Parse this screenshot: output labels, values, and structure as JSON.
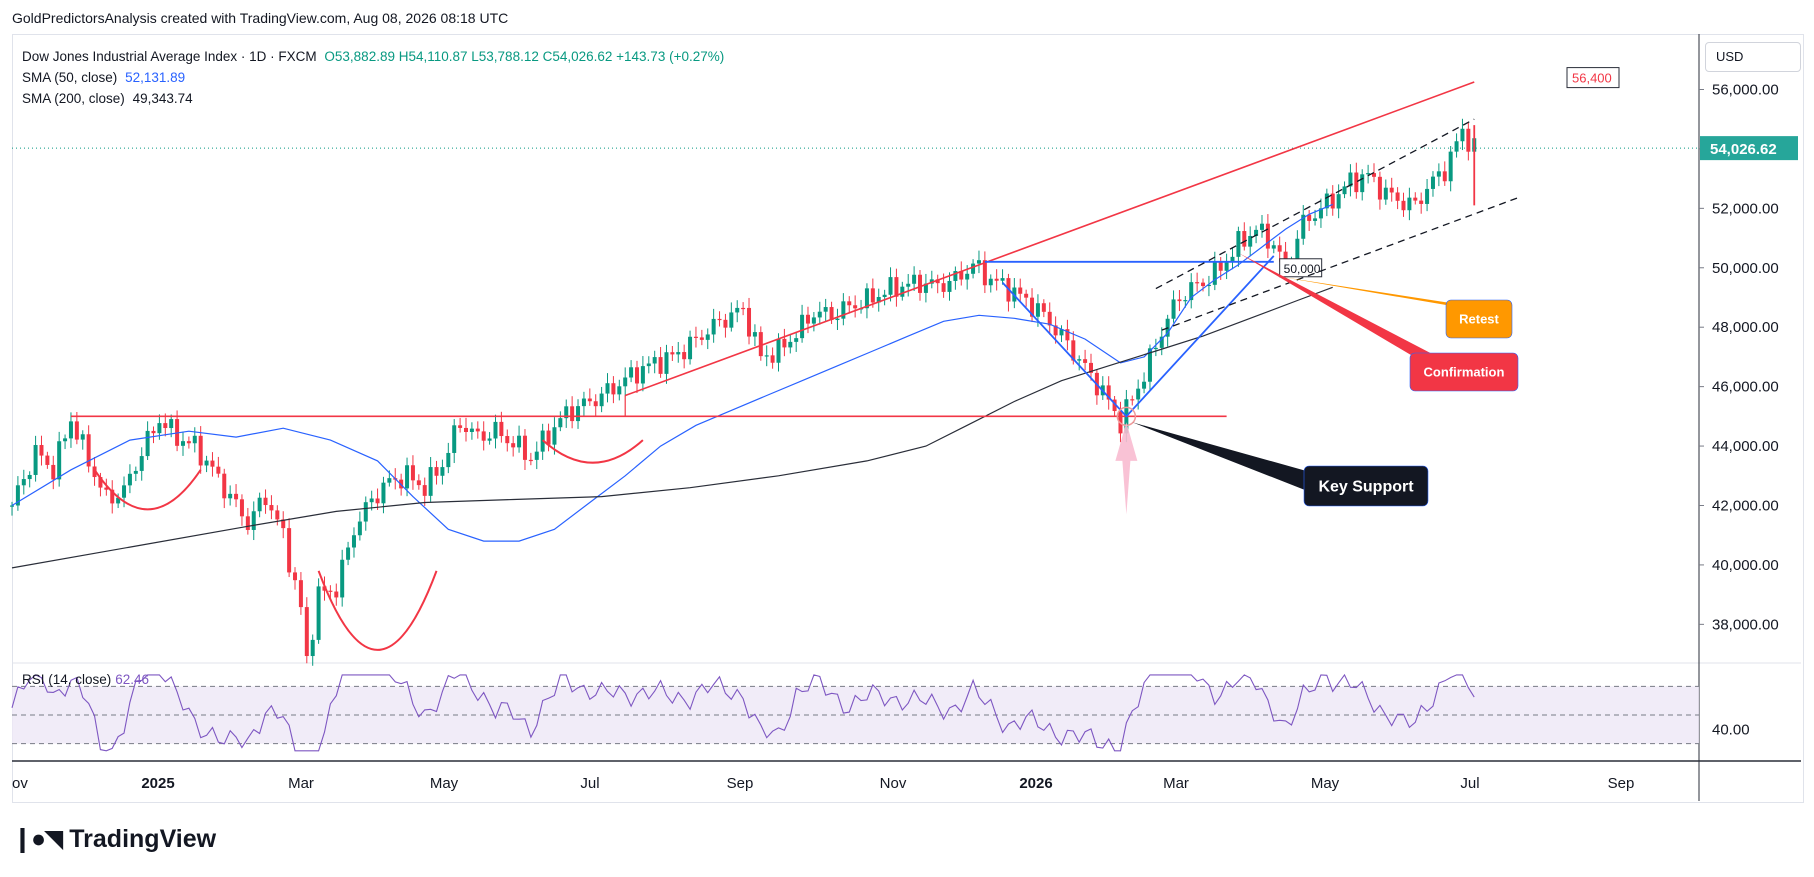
{
  "header": {
    "attribution": "GoldPredictorsAnalysis created with TradingView.com, Aug 08, 2026 08:18 UTC"
  },
  "legend": {
    "symbol": "Dow Jones Industrial Average Index · 1D · FXCM",
    "ohlc": "O53,882.89  H54,110.87  L53,788.12  C54,026.62  +143.73 (+0.27%)",
    "sma50_label": "SMA (50, close)",
    "sma50_value": "52,131.89",
    "sma200_label": "SMA (200, close)",
    "sma200_value": "49,343.74"
  },
  "rsi_legend": {
    "label": "RSI (14, close)",
    "value": "62.46"
  },
  "currency": "USD",
  "brand": {
    "name": "TradingView"
  },
  "colors": {
    "price_up": "#089981",
    "price_down": "#f23645",
    "sma50": "#2962ff",
    "sma200": "#2a2e39",
    "trend_red": "#f23645",
    "pattern_blue": "#2962ff",
    "rsi_line": "#7e57c2",
    "last_price_tag": "#26a69a",
    "retest_box": "#ff9800",
    "confirmation_box": "#f23645",
    "key_support_box": "#131722"
  },
  "chart_data": {
    "type": "line",
    "title": "Dow Jones Industrial Average Index",
    "subtitle": "1D · FXCM",
    "x_ticks": [
      "ov",
      "2025",
      "Mar",
      "May",
      "Jul",
      "Sep",
      "Nov",
      "2026",
      "Mar",
      "May",
      "Jul",
      "Sep"
    ],
    "y_ticks": [
      "56,000.00",
      "54,000.00",
      "52,000.00",
      "50,000.00",
      "48,000.00",
      "46,000.00",
      "44,000.00",
      "42,000.00",
      "40,000.00",
      "38,000.00"
    ],
    "ylim": [
      36800,
      57800
    ],
    "last_price": "54,026.62",
    "series": [
      {
        "name": "SMA (50, close)",
        "values": [
          [
            0,
            42000
          ],
          [
            10,
            43200
          ],
          [
            20,
            44200
          ],
          [
            30,
            44500
          ],
          [
            38,
            44300
          ],
          [
            46,
            44600
          ],
          [
            54,
            44200
          ],
          [
            62,
            43500
          ],
          [
            68,
            42300
          ],
          [
            74,
            41200
          ],
          [
            80,
            40800
          ],
          [
            86,
            40800
          ],
          [
            92,
            41200
          ],
          [
            98,
            42100
          ],
          [
            104,
            43000
          ],
          [
            110,
            44000
          ],
          [
            116,
            44700
          ],
          [
            122,
            45200
          ],
          [
            128,
            45700
          ],
          [
            134,
            46200
          ],
          [
            140,
            46700
          ],
          [
            146,
            47200
          ],
          [
            152,
            47700
          ],
          [
            158,
            48200
          ],
          [
            164,
            48400
          ],
          [
            170,
            48300
          ],
          [
            176,
            48100
          ],
          [
            182,
            47600
          ],
          [
            188,
            46800
          ],
          [
            192,
            47000
          ],
          [
            196,
            47800
          ],
          [
            200,
            49000
          ],
          [
            204,
            49600
          ],
          [
            208,
            50100
          ],
          [
            212,
            50700
          ],
          [
            216,
            51300
          ],
          [
            220,
            51800
          ],
          [
            224,
            52131.89
          ]
        ]
      },
      {
        "name": "SMA (200, close)",
        "values": [
          [
            0,
            39900
          ],
          [
            20,
            40600
          ],
          [
            40,
            41300
          ],
          [
            55,
            41800
          ],
          [
            70,
            42100
          ],
          [
            85,
            42200
          ],
          [
            100,
            42300
          ],
          [
            115,
            42600
          ],
          [
            130,
            43000
          ],
          [
            145,
            43500
          ],
          [
            155,
            44000
          ],
          [
            162,
            44700
          ],
          [
            170,
            45500
          ],
          [
            178,
            46200
          ],
          [
            186,
            46700
          ],
          [
            194,
            47200
          ],
          [
            202,
            47700
          ],
          [
            210,
            48300
          ],
          [
            218,
            48900
          ],
          [
            224,
            49343.74
          ]
        ]
      }
    ],
    "price_path": [
      [
        0,
        42000
      ],
      [
        4,
        43800
      ],
      [
        7,
        43200
      ],
      [
        10,
        44900
      ],
      [
        13,
        43500
      ],
      [
        16,
        42200
      ],
      [
        19,
        42500
      ],
      [
        22,
        43800
      ],
      [
        25,
        44900
      ],
      [
        28,
        44300
      ],
      [
        31,
        44000
      ],
      [
        34,
        43200
      ],
      [
        37,
        42300
      ],
      [
        40,
        41400
      ],
      [
        43,
        42300
      ],
      [
        46,
        41000
      ],
      [
        49,
        38500
      ],
      [
        50,
        36800
      ],
      [
        52,
        39000
      ],
      [
        55,
        39200
      ],
      [
        58,
        41200
      ],
      [
        61,
        42200
      ],
      [
        64,
        42800
      ],
      [
        67,
        43000
      ],
      [
        70,
        42600
      ],
      [
        73,
        43400
      ],
      [
        76,
        44800
      ],
      [
        79,
        44300
      ],
      [
        82,
        44500
      ],
      [
        85,
        44100
      ],
      [
        88,
        43600
      ],
      [
        91,
        44400
      ],
      [
        94,
        45100
      ],
      [
        97,
        45400
      ],
      [
        100,
        45700
      ],
      [
        103,
        46100
      ],
      [
        106,
        46500
      ],
      [
        109,
        46800
      ],
      [
        112,
        47000
      ],
      [
        115,
        47400
      ],
      [
        118,
        47900
      ],
      [
        121,
        48300
      ],
      [
        124,
        48600
      ],
      [
        127,
        47000
      ],
      [
        130,
        47200
      ],
      [
        133,
        47800
      ],
      [
        136,
        48500
      ],
      [
        139,
        48400
      ],
      [
        142,
        48700
      ],
      [
        145,
        48900
      ],
      [
        148,
        49200
      ],
      [
        151,
        49400
      ],
      [
        154,
        49500
      ],
      [
        157,
        49400
      ],
      [
        160,
        49600
      ],
      [
        163,
        50100
      ],
      [
        166,
        49600
      ],
      [
        169,
        49300
      ],
      [
        172,
        48900
      ],
      [
        175,
        48400
      ],
      [
        178,
        47700
      ],
      [
        181,
        46900
      ],
      [
        184,
        46100
      ],
      [
        186,
        45500
      ],
      [
        188,
        44800
      ],
      [
        190,
        45600
      ],
      [
        192,
        46400
      ],
      [
        194,
        47400
      ],
      [
        196,
        48300
      ],
      [
        198,
        49000
      ],
      [
        200,
        49300
      ],
      [
        202,
        49500
      ],
      [
        205,
        50000
      ],
      [
        208,
        50800
      ],
      [
        211,
        51300
      ],
      [
        214,
        50800
      ],
      [
        216,
        50000
      ],
      [
        219,
        51500
      ],
      [
        222,
        52000
      ],
      [
        224,
        52300
      ],
      [
        227,
        52900
      ],
      [
        230,
        53100
      ],
      [
        233,
        52500
      ],
      [
        236,
        52200
      ],
      [
        238,
        52100
      ],
      [
        240,
        52700
      ],
      [
        243,
        53300
      ],
      [
        246,
        54600
      ],
      [
        248,
        54026.62
      ]
    ],
    "rsi": {
      "label": "RSI (14, close)",
      "value": 62.46,
      "levels": [
        70,
        50,
        30
      ],
      "axis_tick": "40.00"
    },
    "annotations": [
      {
        "text": "56,400",
        "type": "label"
      },
      {
        "text": "50,000",
        "type": "label"
      },
      {
        "text": "Retest",
        "type": "callout"
      },
      {
        "text": "Confirmation",
        "type": "callout"
      },
      {
        "text": "Key Support",
        "type": "callout"
      }
    ]
  }
}
